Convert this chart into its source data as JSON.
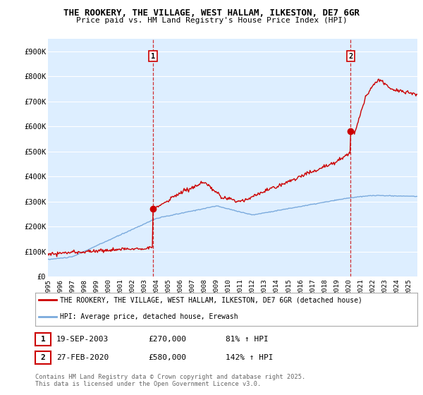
{
  "title": "THE ROOKERY, THE VILLAGE, WEST HALLAM, ILKESTON, DE7 6GR",
  "subtitle": "Price paid vs. HM Land Registry's House Price Index (HPI)",
  "background_color": "#ffffff",
  "plot_bg_color": "#ddeeff",
  "grid_color": "#ffffff",
  "line1_color": "#cc0000",
  "line2_color": "#7aaadd",
  "ylim": [
    0,
    950000
  ],
  "yticks": [
    0,
    100000,
    200000,
    300000,
    400000,
    500000,
    600000,
    700000,
    800000,
    900000
  ],
  "ytick_labels": [
    "£0",
    "£100K",
    "£200K",
    "£300K",
    "£400K",
    "£500K",
    "£600K",
    "£700K",
    "£800K",
    "£900K"
  ],
  "xlim_start": 1995,
  "xlim_end": 2025.7,
  "vline1_x": 2003.72,
  "vline2_x": 2020.16,
  "point1_x": 2003.72,
  "point1_y": 270000,
  "point2_x": 2020.16,
  "point2_y": 580000,
  "legend_line1": "THE ROOKERY, THE VILLAGE, WEST HALLAM, ILKESTON, DE7 6GR (detached house)",
  "legend_line2": "HPI: Average price, detached house, Erewash",
  "table_row1": [
    "1",
    "19-SEP-2003",
    "£270,000",
    "81% ↑ HPI"
  ],
  "table_row2": [
    "2",
    "27-FEB-2020",
    "£580,000",
    "142% ↑ HPI"
  ],
  "footer": "Contains HM Land Registry data © Crown copyright and database right 2025.\nThis data is licensed under the Open Government Licence v3.0."
}
